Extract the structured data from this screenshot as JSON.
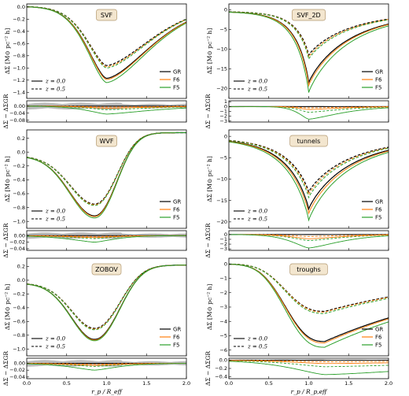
{
  "colors": {
    "GR": "#000000",
    "F6": "#ff7f0e",
    "F5": "#2ca02c",
    "band": "#9e9e9e"
  },
  "legend_models": [
    {
      "key": "GR",
      "label": "GR"
    },
    {
      "key": "F6",
      "label": "F6"
    },
    {
      "key": "F5",
      "label": "F5"
    }
  ],
  "legend_redshift": [
    {
      "label": "z = 0.0",
      "dash": false
    },
    {
      "label": "z = 0.5",
      "dash": true
    }
  ],
  "chart_data": [
    {
      "type": "line",
      "title": "SVF",
      "xlabel": "",
      "xlim": [
        0.0,
        2.0
      ],
      "xticks": [
        "0.0",
        "0.5",
        "1.0",
        "1.5",
        "2.0"
      ],
      "ylabel": "ΔΣ [M⊙ pc⁻² h]",
      "ylim": [
        -1.5,
        0.05
      ],
      "yticks": [
        0.0,
        -0.2,
        -0.4,
        -0.6,
        -0.8,
        -1.0,
        -1.2,
        -1.4
      ],
      "ytick_labels": [
        "0.0",
        "−0.2",
        "−0.4",
        "−0.6",
        "−0.8",
        "−1.0",
        "−1.2",
        "−1.4"
      ],
      "profile": {
        "kind": "void",
        "center": 1.0,
        "lw": 0.35,
        "rw": 0.78,
        "plateau": 0.03
      },
      "minima": {
        "GR_z0": -1.17,
        "F6_z0": -1.19,
        "F5_z0": -1.24,
        "GR_z5": -0.96,
        "F6_z5": -0.98,
        "F5_z5": -1.0
      },
      "resid": {
        "ylabel": "ΔΣ − ΔΣGR",
        "ylim": [
          -0.09,
          0.03
        ],
        "yticks": [
          0.0,
          -0.04,
          -0.08
        ],
        "ytick_labels": [
          "0.00",
          "−0.04",
          "−0.08"
        ],
        "F6_min": -0.012,
        "F5_min": -0.045,
        "band": 0.016
      }
    },
    {
      "type": "line",
      "title": "SVF_2D",
      "xlabel": "",
      "xlim": [
        0.0,
        2.0
      ],
      "xticks": [
        "0.0",
        "0.5",
        "1.0",
        "1.5",
        "2.0"
      ],
      "ylabel": "ΔΣ [M⊙ pc⁻² h]",
      "ylim": [
        -22.5,
        1.5
      ],
      "yticks": [
        0,
        -5,
        -10,
        -15,
        -20
      ],
      "ytick_labels": [
        "0",
        "−5",
        "−10",
        "−15",
        "−20"
      ],
      "profile": {
        "kind": "cusp",
        "center": 1.0,
        "lw": 0.18,
        "rw": 0.55,
        "plateau": -0.4
      },
      "minima": {
        "GR_z0": -18.5,
        "F6_z0": -19.2,
        "F5_z0": -21.0,
        "GR_z5": -11.5,
        "F6_z5": -12.0,
        "F5_z5": -12.5
      },
      "resid": {
        "ylabel": "ΔΣ − ΔΣGR",
        "ylim": [
          -3.2,
          1.2
        ],
        "yticks": [
          1,
          0,
          -1,
          -2,
          -3
        ],
        "ytick_labels": [
          "1",
          "0",
          "−1",
          "−2",
          "−3"
        ],
        "F6_min": -0.6,
        "F5_min": -2.6,
        "band": 0.12
      }
    },
    {
      "type": "line",
      "title": "WVF",
      "xlabel": "",
      "xlim": [
        0.0,
        2.0
      ],
      "xticks": [
        "0.0",
        "0.5",
        "1.0",
        "1.5",
        "2.0"
      ],
      "ylabel": "ΔΣ [M⊙ pc⁻² h]",
      "ylim": [
        -1.1,
        0.32
      ],
      "yticks": [
        0.2,
        0.0,
        -0.2,
        -0.4,
        -0.6,
        -0.8,
        -1.0
      ],
      "ytick_labels": [
        "0.2",
        "0.0",
        "−0.2",
        "−0.4",
        "−0.6",
        "−0.8",
        "−1.0"
      ],
      "profile": {
        "kind": "smooth",
        "center": 0.85,
        "lw": 0.45,
        "rw": 0.35,
        "plateau": 0.28
      },
      "minima": {
        "GR_z0": -0.92,
        "F6_z0": -0.93,
        "F5_z0": -0.95,
        "GR_z5": -0.75,
        "F6_z5": -0.76,
        "F5_z5": -0.77
      },
      "resid": {
        "ylabel": "ΔΣ − ΔΣGR",
        "ylim": [
          -0.045,
          0.015
        ],
        "yticks": [
          0.0,
          -0.02,
          -0.04
        ],
        "ytick_labels": [
          "0.00",
          "−0.02",
          "−0.04"
        ],
        "F6_min": -0.006,
        "F5_min": -0.02,
        "band": 0.008
      }
    },
    {
      "type": "line",
      "title": "tunnels",
      "xlabel": "",
      "xlim": [
        0.0,
        2.0
      ],
      "xticks": [
        "0.0",
        "0.5",
        "1.0",
        "1.5",
        "2.0"
      ],
      "ylabel": "ΔΣ [M⊙ pc⁻² h]",
      "ylim": [
        -21.5,
        1.5
      ],
      "yticks": [
        0,
        -5,
        -10,
        -15,
        -20
      ],
      "ytick_labels": [
        "0",
        "−5",
        "−10",
        "−15",
        "−20"
      ],
      "profile": {
        "kind": "cusp",
        "center": 1.0,
        "lw": 0.3,
        "rw": 0.55,
        "plateau": -0.3
      },
      "minima": {
        "GR_z0": -17.0,
        "F6_z0": -18.0,
        "F5_z0": -19.6,
        "GR_z5": -13.0,
        "F6_z5": -13.6,
        "F5_z5": -14.3
      },
      "resid": {
        "ylabel": "ΔΣ − ΔΣGR",
        "ylim": [
          -3.3,
          0.8
        ],
        "yticks": [
          0,
          -1,
          -2,
          -3
        ],
        "ytick_labels": [
          "0",
          "−1",
          "−2",
          "−3"
        ],
        "F6_min": -0.9,
        "F5_min": -2.8,
        "band": 0.1
      }
    },
    {
      "type": "line",
      "title": "ZOBOV",
      "xlabel": "r_p / R_eff",
      "xlim": [
        0.0,
        2.0
      ],
      "xticks": [
        "0.0",
        "0.5",
        "1.0",
        "1.5",
        "2.0"
      ],
      "ylabel": "ΔΣ [M⊙ pc⁻² h]",
      "ylim": [
        -1.1,
        0.32
      ],
      "yticks": [
        0.2,
        0.0,
        -0.2,
        -0.4,
        -0.6,
        -0.8,
        -1.0
      ],
      "ytick_labels": [
        "0.2",
        "0.0",
        "−0.2",
        "−0.4",
        "−0.6",
        "−0.8",
        "−1.0"
      ],
      "profile": {
        "kind": "smooth",
        "center": 0.85,
        "lw": 0.42,
        "rw": 0.4,
        "plateau": 0.22
      },
      "minima": {
        "GR_z0": -0.86,
        "F6_z0": -0.87,
        "F5_z0": -0.88,
        "GR_z5": -0.7,
        "F6_z5": -0.71,
        "F5_z5": -0.72
      },
      "resid": {
        "ylabel": "ΔΣ − ΔΣGR",
        "ylim": [
          -0.045,
          0.015
        ],
        "yticks": [
          0.0,
          -0.02,
          -0.04
        ],
        "ytick_labels": [
          "0.00",
          "−0.02",
          "−0.04"
        ],
        "F6_min": -0.006,
        "F5_min": -0.02,
        "band": 0.008
      }
    },
    {
      "type": "line",
      "title": "troughs",
      "xlabel": "r_p / R_p,eff",
      "xlim": [
        0.0,
        2.0
      ],
      "xticks": [
        "0.0",
        "0.5",
        "1.0",
        "1.5",
        "2.0"
      ],
      "ylabel": "ΔΣ [M⊙ pc⁻² h]",
      "ylim": [
        -6.4,
        0.4
      ],
      "yticks": [
        0,
        -1,
        -2,
        -3,
        -4,
        -5,
        -6
      ],
      "ytick_labels": [
        "0",
        "−1",
        "−2",
        "−3",
        "−4",
        "−5",
        "−6"
      ],
      "profile": {
        "kind": "trough",
        "center": 1.2,
        "lw": 0.6,
        "rw": 2.2,
        "plateau": -3.5
      },
      "minima": {
        "GR_z0": -5.4,
        "F6_z0": -5.5,
        "F5_z0": -5.8,
        "GR_z5": -3.3,
        "F6_z5": -3.35,
        "F5_z5": -3.45
      },
      "resid": {
        "ylabel": "ΔΣ − ΔΣGR",
        "ylim": [
          -0.45,
          0.05
        ],
        "yticks": [
          0.0,
          -0.2,
          -0.4
        ],
        "ytick_labels": [
          "0.0",
          "−0.2",
          "−0.4"
        ],
        "F6_min": -0.08,
        "F5_min": -0.35,
        "band": 0.02
      }
    }
  ]
}
